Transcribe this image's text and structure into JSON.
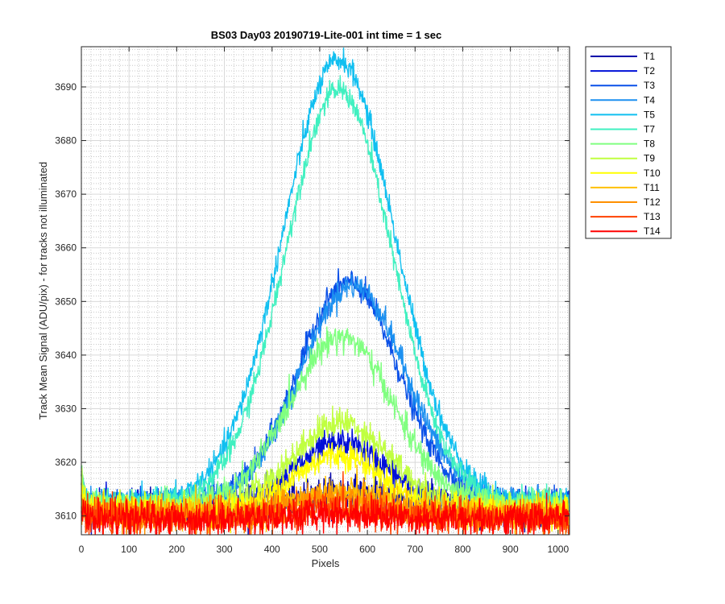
{
  "chart_data": {
    "type": "line",
    "title": "BS03 Day03 20190719-Lite-001 int time = 1 sec",
    "xlabel": "Pixels",
    "ylabel": "Track Mean Signal (ADU/pix) - for tracks not illuminated",
    "xlim": [
      0,
      1024
    ],
    "ylim": [
      3606.5,
      3697.5
    ],
    "xticks": [
      0,
      100,
      200,
      300,
      400,
      500,
      600,
      700,
      800,
      900,
      1000
    ],
    "yticks": [
      3610,
      3620,
      3630,
      3640,
      3650,
      3660,
      3670,
      3680,
      3690
    ],
    "grid": true,
    "minor_grid": true,
    "legend_position": "outside-top-right",
    "noise_note_free": true,
    "series": [
      {
        "name": "T1",
        "color": "#0000AA",
        "baseline": 3611.5,
        "peak": 3614.5,
        "center": 545,
        "width": 90,
        "noise": 1.6
      },
      {
        "name": "T2",
        "color": "#0010D8",
        "baseline": 3612.0,
        "peak": 3623.5,
        "center": 545,
        "width": 95,
        "noise": 1.4
      },
      {
        "name": "T3",
        "color": "#0A50E8",
        "baseline": 3612.5,
        "peak": 3653.5,
        "center": 560,
        "width": 105,
        "noise": 1.2
      },
      {
        "name": "T4",
        "color": "#1C90F0",
        "baseline": 3612.5,
        "peak": 3653.0,
        "center": 570,
        "width": 110,
        "noise": 1.2
      },
      {
        "name": "T5",
        "color": "#10BFF0",
        "baseline": 3612.5,
        "peak": 3695.0,
        "center": 540,
        "width": 118,
        "noise": 1.1
      },
      {
        "name": "T7",
        "color": "#40F0C0",
        "baseline": 3612.5,
        "peak": 3689.5,
        "center": 540,
        "width": 112,
        "noise": 1.1
      },
      {
        "name": "T8",
        "color": "#80FF80",
        "baseline": 3612.0,
        "peak": 3643.5,
        "center": 545,
        "width": 108,
        "noise": 1.3
      },
      {
        "name": "T9",
        "color": "#C0FF40",
        "baseline": 3611.5,
        "peak": 3627.5,
        "center": 545,
        "width": 100,
        "noise": 1.4
      },
      {
        "name": "T10",
        "color": "#FFFF00",
        "baseline": 3611.0,
        "peak": 3621.5,
        "center": 540,
        "width": 90,
        "noise": 1.4
      },
      {
        "name": "T11",
        "color": "#FFC000",
        "baseline": 3610.5,
        "peak": 3614.5,
        "center": 540,
        "width": 90,
        "noise": 1.5
      },
      {
        "name": "T12",
        "color": "#FF9000",
        "baseline": 3610.0,
        "peak": 3613.5,
        "center": 540,
        "width": 90,
        "noise": 1.5
      },
      {
        "name": "T13",
        "color": "#FF4000",
        "baseline": 3609.5,
        "peak": 3611.5,
        "center": 540,
        "width": 90,
        "noise": 1.6
      },
      {
        "name": "T14",
        "color": "#FF0000",
        "baseline": 3609.5,
        "peak": 3610.5,
        "center": 540,
        "width": 90,
        "noise": 1.6
      }
    ]
  }
}
